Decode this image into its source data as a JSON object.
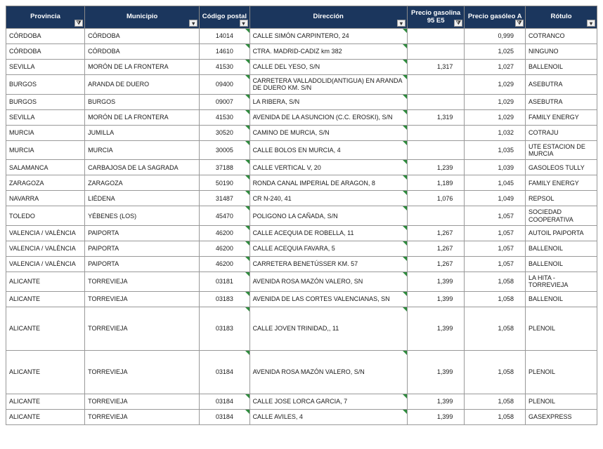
{
  "columns": [
    {
      "key": "provincia",
      "label": "Provincia",
      "filter": true,
      "cls": "c0"
    },
    {
      "key": "municipio",
      "label": "Municipio",
      "filter": false,
      "cls": "c1"
    },
    {
      "key": "codigo",
      "label": "Código postal",
      "filter": false,
      "cls": "c2",
      "align": "code",
      "corner": true
    },
    {
      "key": "direccion",
      "label": "Dirección",
      "filter": false,
      "cls": "c3",
      "corner": true
    },
    {
      "key": "p95",
      "label": "Precio gasolina 95 E5",
      "filter": true,
      "cls": "c4",
      "align": "num"
    },
    {
      "key": "pga",
      "label": "Precio gasóleo A",
      "filter": true,
      "cls": "c5",
      "align": "num"
    },
    {
      "key": "rotulo",
      "label": "Rótulo",
      "filter": false,
      "cls": "c6"
    }
  ],
  "rows": [
    {
      "provincia": "CÓRDOBA",
      "municipio": "CÓRDOBA",
      "codigo": "14014",
      "direccion": "CALLE SIMÓN CARPINTERO, 24",
      "p95": "",
      "pga": "0,999",
      "rotulo": "COTRANCO"
    },
    {
      "provincia": "CÓRDOBA",
      "municipio": "CÓRDOBA",
      "codigo": "14610",
      "direccion": "CTRA. MADRID-CADIZ km 382",
      "p95": "",
      "pga": "1,025",
      "rotulo": "NINGUNO"
    },
    {
      "provincia": "SEVILLA",
      "municipio": "MORÓN DE LA FRONTERA",
      "codigo": "41530",
      "direccion": "CALLE DEL YESO, S/N",
      "p95": "1,317",
      "pga": "1,027",
      "rotulo": "BALLENOIL"
    },
    {
      "provincia": "BURGOS",
      "municipio": "ARANDA DE DUERO",
      "codigo": "09400",
      "direccion": "CARRETERA VALLADOLID(ANTIGUA)  EN ARANDA DE DUERO KM. S/N",
      "p95": "",
      "pga": "1,029",
      "rotulo": "ASEBUTRA"
    },
    {
      "provincia": "BURGOS",
      "municipio": "BURGOS",
      "codigo": "09007",
      "direccion": "LA RIBERA, S/N",
      "p95": "",
      "pga": "1,029",
      "rotulo": "ASEBUTRA"
    },
    {
      "provincia": "SEVILLA",
      "municipio": "MORÓN DE LA FRONTERA",
      "codigo": "41530",
      "direccion": "AVENIDA DE LA ASUNCION (C.C. EROSKI), S/N",
      "p95": "1,319",
      "pga": "1,029",
      "rotulo": "FAMILY ENERGY"
    },
    {
      "provincia": "MURCIA",
      "municipio": "JUMILLA",
      "codigo": "30520",
      "direccion": "CAMINO DE MURCIA, S/N",
      "p95": "",
      "pga": "1,032",
      "rotulo": "COTRAJU"
    },
    {
      "provincia": "MURCIA",
      "municipio": "MURCIA",
      "codigo": "30005",
      "direccion": "CALLE BOLOS  EN  MURCIA, 4",
      "p95": "",
      "pga": "1,035",
      "rotulo": "UTE ESTACION DE MURCIA"
    },
    {
      "provincia": "SALAMANCA",
      "municipio": "CARBAJOSA DE LA SAGRADA",
      "codigo": "37188",
      "direccion": "CALLE VERTICAL V, 20",
      "p95": "1,239",
      "pga": "1,039",
      "rotulo": "GASOLEOS TULLY"
    },
    {
      "provincia": "ZARAGOZA",
      "municipio": "ZARAGOZA",
      "codigo": "50190",
      "direccion": "RONDA CANAL IMPERIAL DE ARAGON, 8",
      "p95": "1,189",
      "pga": "1,045",
      "rotulo": "FAMILY ENERGY"
    },
    {
      "provincia": "NAVARRA",
      "municipio": "LIÉDENA",
      "codigo": "31487",
      "direccion": "CR N-240, 41",
      "p95": "1,076",
      "pga": "1,049",
      "rotulo": "REPSOL"
    },
    {
      "provincia": "TOLEDO",
      "municipio": "YÉBENES (LOS)",
      "codigo": "45470",
      "direccion": "POLIGONO LA CAÑADA, S/N",
      "p95": "",
      "pga": "1,057",
      "rotulo": "SOCIEDAD COOPERATIVA"
    },
    {
      "provincia": "VALENCIA / VALÈNCIA",
      "municipio": "PAIPORTA",
      "codigo": "46200",
      "direccion": "CALLE ACEQUIA DE ROBELLA, 11",
      "p95": "1,267",
      "pga": "1,057",
      "rotulo": "AUTOIL PAIPORTA"
    },
    {
      "provincia": "VALENCIA / VALÈNCIA",
      "municipio": "PAIPORTA",
      "codigo": "46200",
      "direccion": "CALLE ACEQUIA FAVARA, 5",
      "p95": "1,267",
      "pga": "1,057",
      "rotulo": "BALLENOIL"
    },
    {
      "provincia": "VALENCIA / VALÈNCIA",
      "municipio": "PAIPORTA",
      "codigo": "46200",
      "direccion": "CARRETERA BENETÚSSER KM. 57",
      "p95": "1,267",
      "pga": "1,057",
      "rotulo": "BALLENOIL"
    },
    {
      "provincia": "ALICANTE",
      "municipio": "TORREVIEJA",
      "codigo": "03181",
      "direccion": "AVENIDA ROSA MAZÓN VALERO, SN",
      "p95": "1,399",
      "pga": "1,058",
      "rotulo": "LA HITA - TORREVIEJA"
    },
    {
      "provincia": "ALICANTE",
      "municipio": "TORREVIEJA",
      "codigo": "03183",
      "direccion": "AVENIDA DE LAS CORTES VALENCIANAS, SN",
      "p95": "1,399",
      "pga": "1,058",
      "rotulo": "BALLENOIL"
    },
    {
      "provincia": "ALICANTE",
      "municipio": "TORREVIEJA",
      "codigo": "03183",
      "direccion": "CALLE JOVEN TRINIDAD,, 11",
      "p95": "1,399",
      "pga": "1,058",
      "rotulo": "PLENOIL",
      "tall": true
    },
    {
      "provincia": "ALICANTE",
      "municipio": "TORREVIEJA",
      "codigo": "03184",
      "direccion": "AVENIDA ROSA MAZÓN VALERO, S/N",
      "p95": "1,399",
      "pga": "1,058",
      "rotulo": "PLENOIL",
      "tall": true
    },
    {
      "provincia": "ALICANTE",
      "municipio": "TORREVIEJA",
      "codigo": "03184",
      "direccion": "CALLE JOSE LORCA GARCIA, 7",
      "p95": "1,399",
      "pga": "1,058",
      "rotulo": "PLENOIL"
    },
    {
      "provincia": "ALICANTE",
      "municipio": "TORREVIEJA",
      "codigo": "03184",
      "direccion": "CALLE AVILES, 4",
      "p95": "1,399",
      "pga": "1,058",
      "rotulo": "GASEXPRESS"
    }
  ],
  "header_bg": "#1b365d",
  "filter_icon": "⧩",
  "dropdown_icon": "▾"
}
